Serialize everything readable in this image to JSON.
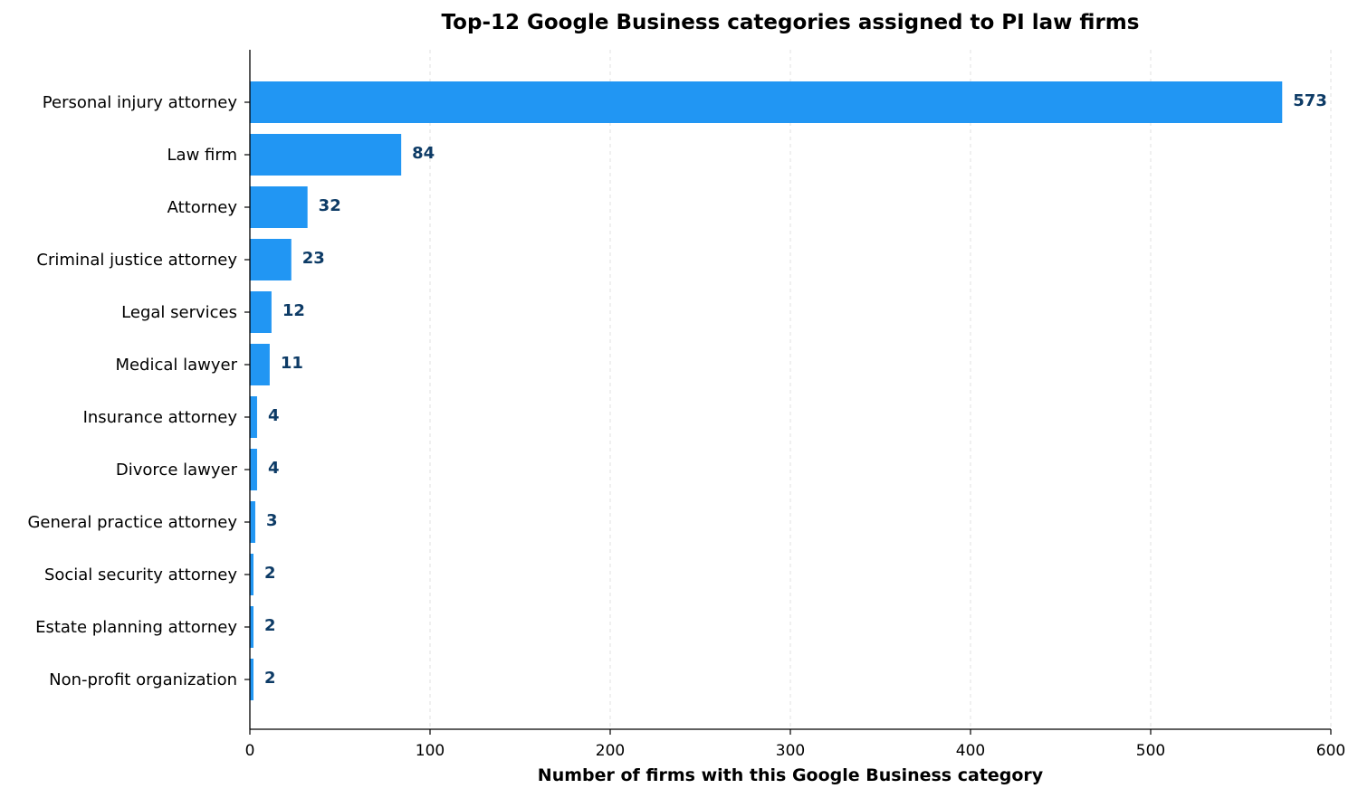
{
  "chart_data": {
    "type": "bar",
    "orientation": "horizontal",
    "title": "Top-12 Google Business categories assigned to PI law firms",
    "xlabel": "Number of firms with this Google Business category",
    "ylabel": "",
    "categories": [
      "Personal injury attorney",
      "Law firm",
      "Attorney",
      "Criminal justice attorney",
      "Legal services",
      "Medical lawyer",
      "Insurance attorney",
      "Divorce lawyer",
      "General practice attorney",
      "Social security attorney",
      "Estate planning attorney",
      "Non-profit organization"
    ],
    "values": [
      573,
      84,
      32,
      23,
      12,
      11,
      4,
      4,
      3,
      2,
      2,
      2
    ],
    "xlim": [
      0,
      600
    ],
    "xticks": [
      0,
      100,
      200,
      300,
      400,
      500,
      600
    ],
    "grid": "x-dashed",
    "bar_color": "#2196F3",
    "value_label_color": "#0D3B66"
  }
}
